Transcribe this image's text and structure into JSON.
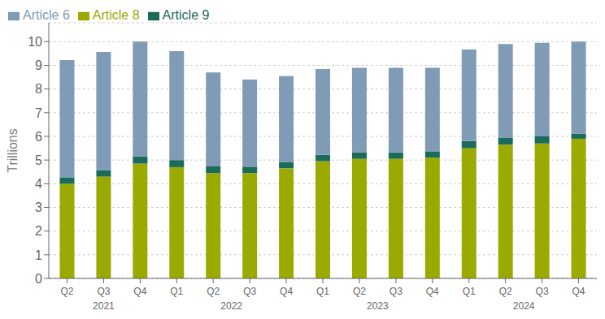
{
  "chart_data": {
    "type": "bar",
    "stacked": true,
    "categories": [
      "Q2",
      "Q3",
      "Q4",
      "Q1",
      "Q2",
      "Q3",
      "Q4",
      "Q1",
      "Q2",
      "Q3",
      "Q4",
      "Q1",
      "Q2",
      "Q3",
      "Q4"
    ],
    "series": [
      {
        "name": "Article 8",
        "color": "#9aaa00",
        "values": [
          4.0,
          4.3,
          4.85,
          4.7,
          4.45,
          4.45,
          4.65,
          4.95,
          5.05,
          5.05,
          5.1,
          5.5,
          5.65,
          5.7,
          5.9
        ]
      },
      {
        "name": "Article 9",
        "color": "#1b6b5a",
        "values": [
          0.27,
          0.27,
          0.3,
          0.3,
          0.28,
          0.27,
          0.27,
          0.27,
          0.28,
          0.27,
          0.27,
          0.3,
          0.3,
          0.3,
          0.22
        ]
      },
      {
        "name": "Article 6",
        "color": "#7f9bb5",
        "values": [
          4.95,
          5.0,
          4.85,
          4.6,
          3.97,
          3.68,
          3.63,
          3.63,
          3.57,
          3.58,
          3.53,
          3.87,
          3.95,
          3.95,
          3.88
        ]
      }
    ],
    "annotations": [
      "2021",
      "2022",
      "2023",
      "2024"
    ],
    "ylabel": "Trillions",
    "ylim": [
      0,
      10.8
    ],
    "yticks": [
      0,
      1,
      2,
      3,
      4,
      5,
      6,
      7,
      8,
      9,
      10
    ],
    "grid": true,
    "legend": "top-left"
  }
}
